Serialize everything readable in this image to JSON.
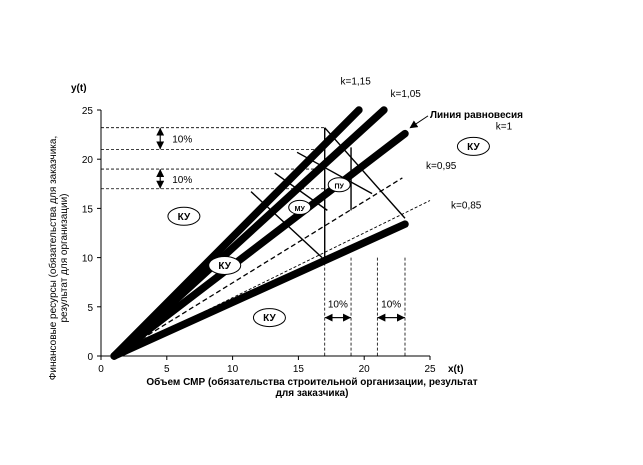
{
  "chart_data": {
    "type": "line",
    "xlabel": "x(t)",
    "ylabel": "y(t)",
    "xcaption": "Объем СМР (обязательства строительной организации, результат для заказчика)",
    "ycaption": "Финансовые ресурсы (обязательства для заказчика, результат для организации)",
    "xlim": [
      0,
      25
    ],
    "ylim": [
      0,
      25
    ],
    "xticks": [
      0,
      5,
      10,
      15,
      20,
      25
    ],
    "yticks": [
      0,
      5,
      10,
      15,
      20,
      25
    ],
    "series": [
      {
        "name": "k=1,15",
        "style": "thick",
        "x": [
          1,
          19.6
        ],
        "y": [
          0,
          25
        ]
      },
      {
        "name": "k=1,05",
        "style": "thick",
        "x": [
          1,
          21.5
        ],
        "y": [
          0,
          25
        ]
      },
      {
        "name": "k=1",
        "style": "thick",
        "x": [
          1,
          23.1
        ],
        "y": [
          0,
          22.6
        ]
      },
      {
        "name": "k=0,95",
        "style": "dashed",
        "x": [
          1,
          22.9
        ],
        "y": [
          0,
          18.1
        ]
      },
      {
        "name": "k=0,85",
        "style": "thin-dashed",
        "x": [
          1,
          25.0
        ],
        "y": [
          0,
          15.8
        ]
      },
      {
        "name": "",
        "style": "thick",
        "x": [
          1,
          23.1
        ],
        "y": [
          0,
          13.4
        ]
      }
    ],
    "region_segments": [
      {
        "x": [
          17.0,
          23.1
        ],
        "y": [
          23.2,
          14.0
        ]
      },
      {
        "x": [
          14.9,
          20.6
        ],
        "y": [
          20.7,
          16.5
        ]
      },
      {
        "x": [
          13.2,
          17.2
        ],
        "y": [
          18.6,
          14.8
        ]
      },
      {
        "x": [
          11.4,
          16.8
        ],
        "y": [
          16.7,
          10.0
        ]
      },
      {
        "x": [
          17.0,
          17.0
        ],
        "y": [
          23.2,
          10.0
        ]
      },
      {
        "x": [
          19.0,
          19.0
        ],
        "y": [
          21.2,
          14.8
        ]
      }
    ],
    "guides": {
      "y_dashed": [
        23.2,
        21.0,
        19.0,
        17.0
      ],
      "x_dashed": [
        17.0,
        19.0,
        21.0,
        23.1
      ],
      "x_dashed_to": 10.0
    },
    "intervals": [
      {
        "axis": "y",
        "from": 21.0,
        "to": 23.2,
        "at_x": 4.5,
        "label": "10%"
      },
      {
        "axis": "y",
        "from": 17.0,
        "to": 19.0,
        "at_x": 4.5,
        "label": "10%"
      },
      {
        "axis": "x",
        "from": 17.0,
        "to": 19.0,
        "at_y": 3.9,
        "label": "10%"
      },
      {
        "axis": "x",
        "from": 21.0,
        "to": 23.1,
        "at_y": 3.9,
        "label": "10%"
      }
    ],
    "k_labels": [
      {
        "text": "k=1,15",
        "x": 18.2,
        "y": 27.6
      },
      {
        "text": "k=1,05",
        "x": 22.0,
        "y": 26.3
      },
      {
        "text": "k=1",
        "x": 30.0,
        "y": 23.0
      },
      {
        "text": "k=0,95",
        "x": 24.7,
        "y": 19.0
      },
      {
        "text": "k=0,85",
        "x": 26.6,
        "y": 15.0
      }
    ],
    "equilibrium": {
      "text": "Линия равновесия",
      "x": 25.0,
      "y": 24.2,
      "arrow_to": [
        23.2,
        23.0
      ]
    },
    "zones": [
      {
        "text": "КУ",
        "x": 6.3,
        "y": 14.2,
        "rx": 16,
        "ry": 9
      },
      {
        "text": "КУ",
        "x": 9.4,
        "y": 9.2,
        "rx": 16,
        "ry": 9
      },
      {
        "text": "КУ",
        "x": 12.8,
        "y": 3.9,
        "rx": 16,
        "ry": 9
      },
      {
        "text": "КУ",
        "x": 28.3,
        "y": 21.3,
        "rx": 16,
        "ry": 9
      },
      {
        "text": "МУ",
        "x": 15.1,
        "y": 15.1,
        "rx": 11,
        "ry": 7
      },
      {
        "text": "ПУ",
        "x": 18.1,
        "y": 17.4,
        "rx": 11,
        "ry": 7
      }
    ]
  }
}
